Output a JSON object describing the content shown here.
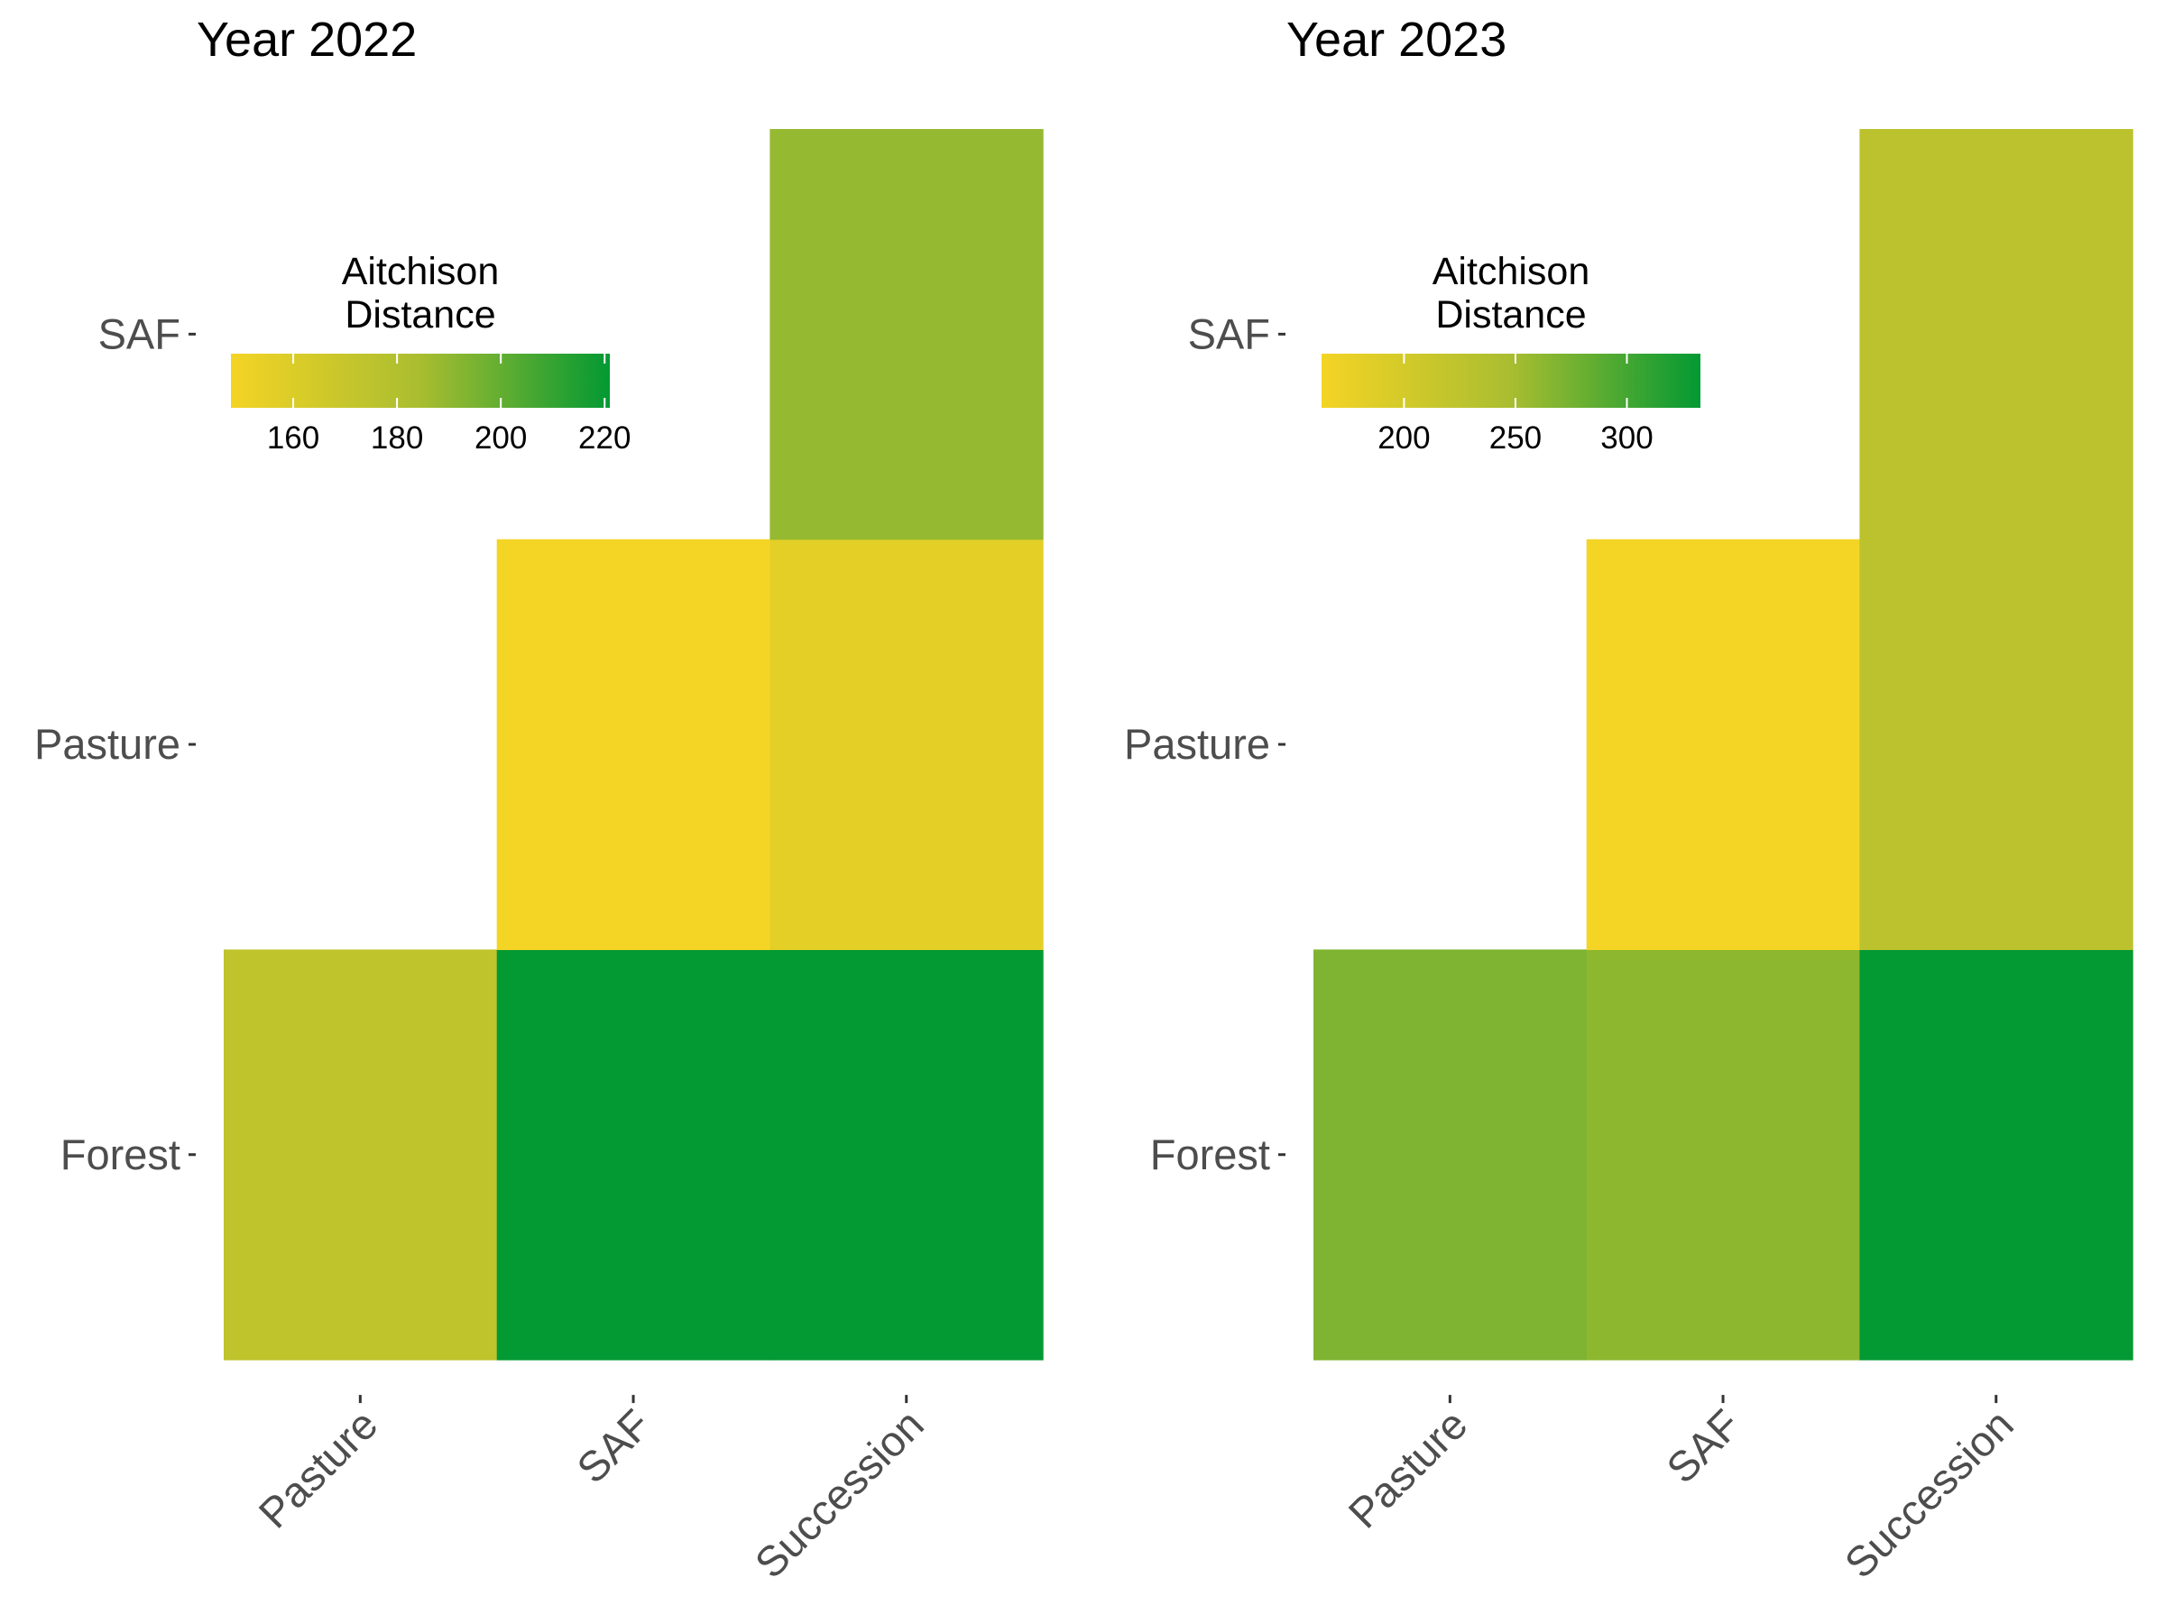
{
  "chart_data": [
    {
      "type": "heatmap",
      "title": "Year 2022",
      "xlabel": "",
      "ylabel": "",
      "x_categories": [
        "Pasture",
        "SAF",
        "Succession"
      ],
      "y_categories": [
        "Forest",
        "Pasture",
        "SAF"
      ],
      "cells": [
        {
          "x": "Pasture",
          "y": "Forest",
          "value": 174
        },
        {
          "x": "SAF",
          "y": "Forest",
          "value": 221
        },
        {
          "x": "Succession",
          "y": "Forest",
          "value": 221
        },
        {
          "x": "SAF",
          "y": "Pasture",
          "value": 148
        },
        {
          "x": "Succession",
          "y": "Pasture",
          "value": 156
        },
        {
          "x": "Succession",
          "y": "SAF",
          "value": 189
        }
      ],
      "legend": {
        "title_lines": [
          "Aitchison",
          "Distance"
        ],
        "breaks": [
          160,
          180,
          200,
          220
        ],
        "break_labels": [
          "160",
          "180",
          "200",
          "220"
        ],
        "limits": [
          148,
          221
        ],
        "placement": "top-left"
      },
      "colors": {
        "low": "#f4d425",
        "mid": "#a9bd30",
        "high": "#039933"
      },
      "grid": false
    },
    {
      "type": "heatmap",
      "title": "Year 2023",
      "xlabel": "",
      "ylabel": "",
      "x_categories": [
        "Pasture",
        "SAF",
        "Succession"
      ],
      "y_categories": [
        "Forest",
        "Pasture",
        "SAF"
      ],
      "cells": [
        {
          "x": "Pasture",
          "y": "Forest",
          "value": 270
        },
        {
          "x": "SAF",
          "y": "Forest",
          "value": 262
        },
        {
          "x": "Succession",
          "y": "Forest",
          "value": 333
        },
        {
          "x": "SAF",
          "y": "Pasture",
          "value": 163
        },
        {
          "x": "Succession",
          "y": "Pasture",
          "value": 228
        },
        {
          "x": "Succession",
          "y": "SAF",
          "value": 228
        }
      ],
      "legend": {
        "title_lines": [
          "Aitchison",
          "Distance"
        ],
        "breaks": [
          200,
          250,
          300
        ],
        "break_labels": [
          "200",
          "250",
          "300"
        ],
        "limits": [
          163,
          333
        ],
        "placement": "top-left"
      },
      "colors": {
        "low": "#f4d425",
        "mid": "#a9bd30",
        "high": "#039933"
      },
      "grid": false
    }
  ]
}
